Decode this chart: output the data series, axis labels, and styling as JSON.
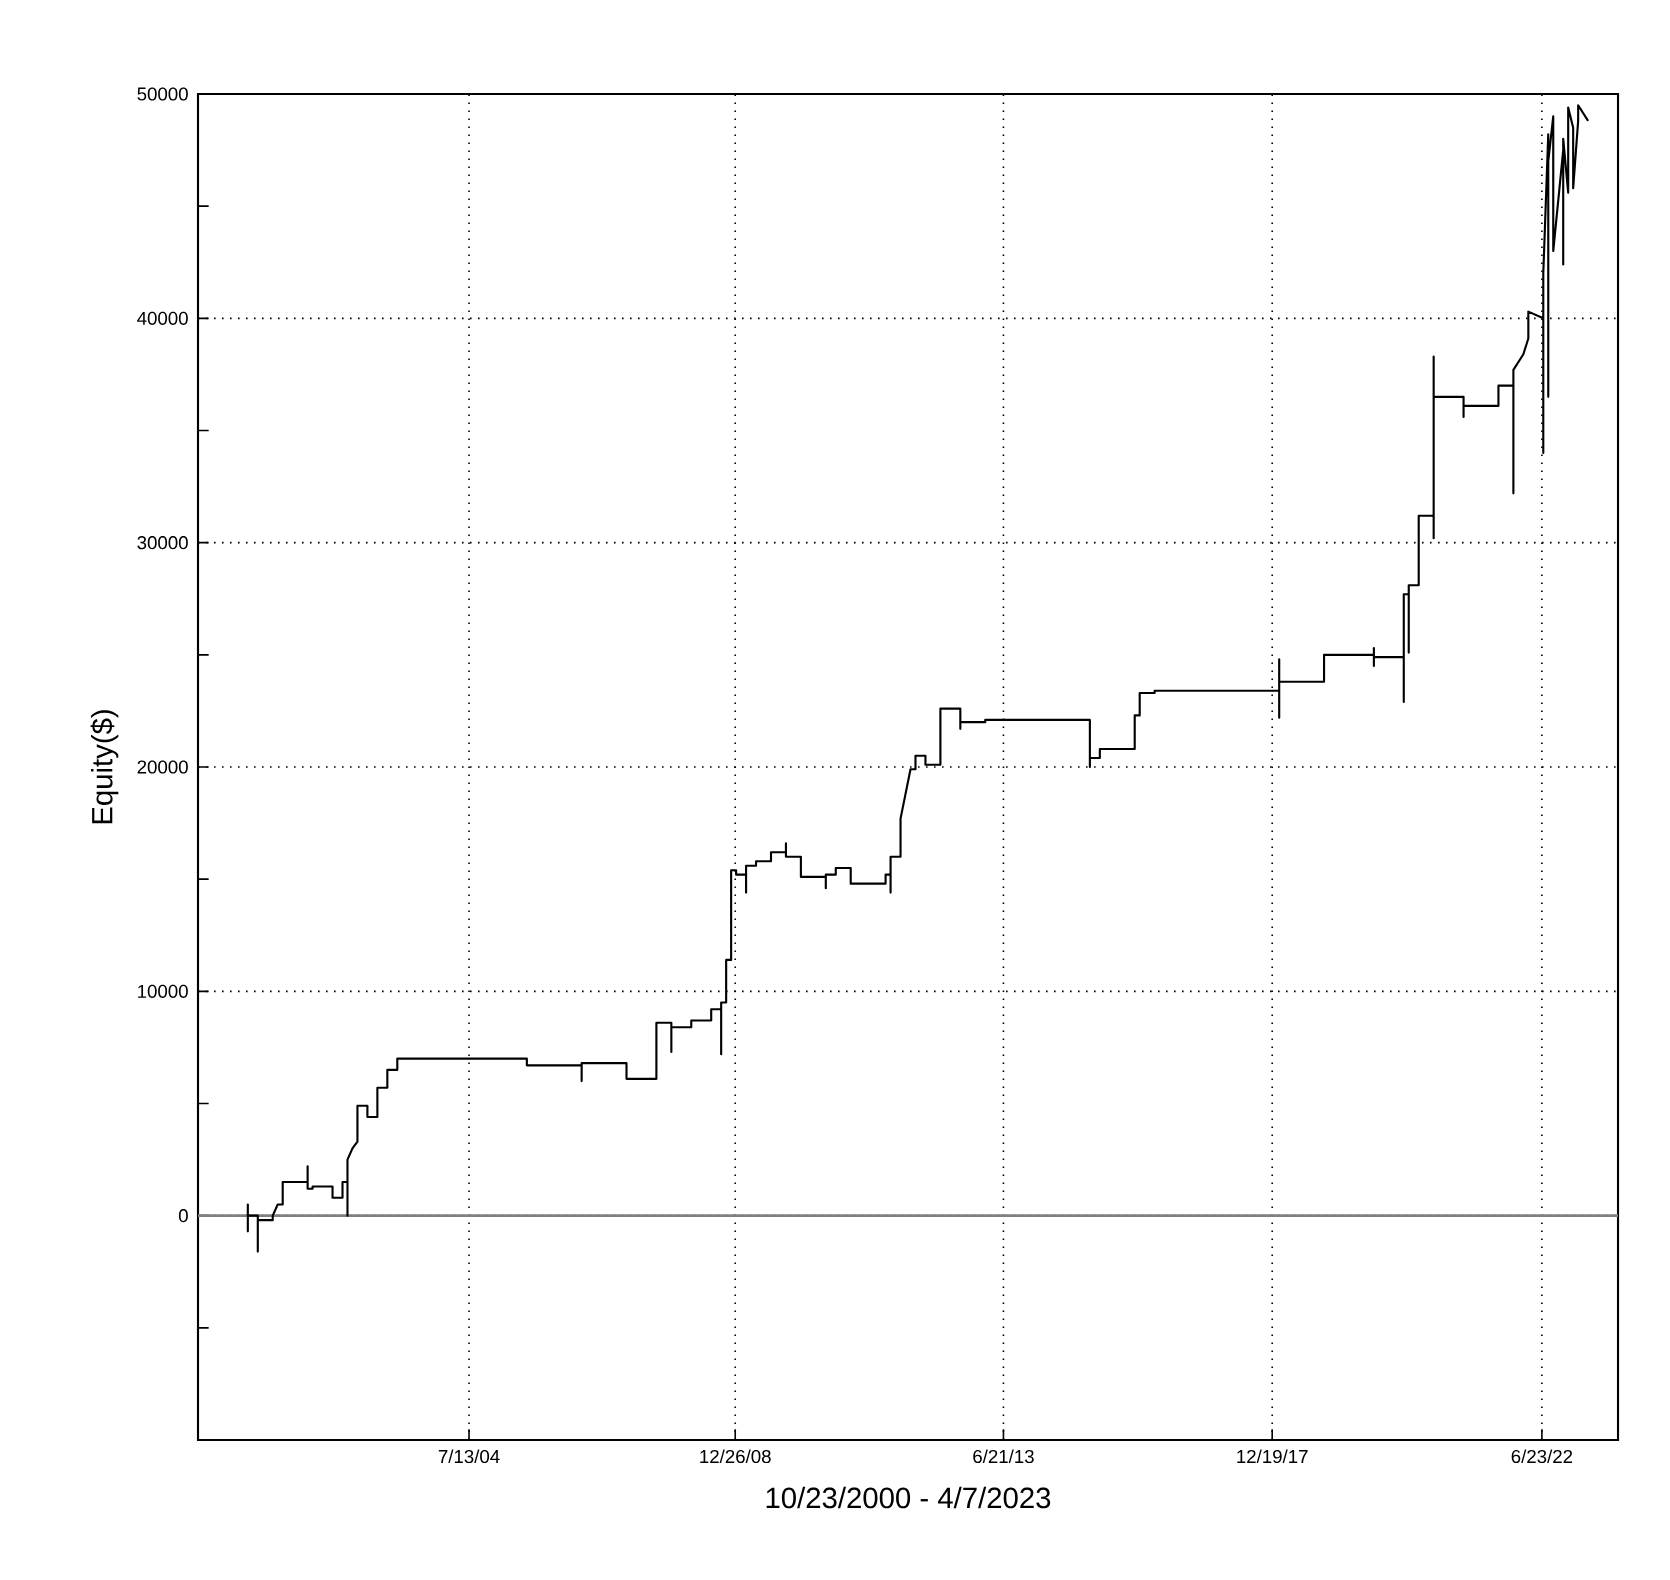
{
  "chart_data": {
    "type": "line",
    "xlabel": "10/23/2000 - 4/7/2023",
    "ylabel": "Equity($)",
    "xlim": [
      "2000-01-01",
      "2023-10-01"
    ],
    "ylim": [
      -10000,
      50000
    ],
    "xticks": [
      {
        "value": "2004-07-13",
        "label": "7/13/04"
      },
      {
        "value": "2008-12-26",
        "label": "12/26/08"
      },
      {
        "value": "2013-06-21",
        "label": "6/21/13"
      },
      {
        "value": "2017-12-19",
        "label": "12/19/17"
      },
      {
        "value": "2022-06-23",
        "label": "6/23/22"
      }
    ],
    "yticks": [
      {
        "value": -5000,
        "label": null
      },
      0,
      {
        "value": 5000,
        "label": null
      },
      10000,
      {
        "value": 15000,
        "label": null
      },
      20000,
      {
        "value": 25000,
        "label": null
      },
      30000,
      {
        "value": 35000,
        "label": null
      },
      40000,
      {
        "value": 45000,
        "label": null
      },
      50000
    ],
    "grid": true,
    "line_style": "solid",
    "ref_lines": [
      {
        "axis": "y",
        "value": 0,
        "color": "#808080"
      }
    ],
    "series": [
      {
        "color": "#000000",
        "x": [
          "2000-11",
          "2000-11",
          "2000-11",
          "2000-11",
          "2001-01",
          "2001-01",
          "2001-01",
          "2001-04",
          "2001-04",
          "2001-05",
          "2001-06",
          "2001-06",
          "2001-11",
          "2001-11",
          "2001-11",
          "2001-12",
          "2001-12",
          "2002-04",
          "2002-04",
          "2002-06",
          "2002-06",
          "2002-07",
          "2002-07",
          "2002-07",
          "2002-08",
          "2002-09",
          "2002-09",
          "2002-11",
          "2002-11",
          "2003-01",
          "2003-01",
          "2003-03",
          "2003-03",
          "2003-05",
          "2003-05",
          "2005-07",
          "2005-07",
          "2006-06",
          "2006-06",
          "2006-06",
          "2007-03",
          "2007-03",
          "2007-08",
          "2007-09",
          "2007-09",
          "2007-12",
          "2007-12",
          "2007-12",
          "2008-04",
          "2008-04",
          "2008-08",
          "2008-08",
          "2008-10",
          "2008-10",
          "2008-10",
          "2008-11",
          "2008-11",
          "2008-12",
          "2008-12",
          "2009-01",
          "2009-01",
          "2009-03",
          "2009-03",
          "2009-03",
          "2009-05",
          "2009-05",
          "2009-08",
          "2009-08",
          "2009-11",
          "2009-11",
          "2009-11",
          "2010-02",
          "2010-02",
          "2010-07",
          "2010-07",
          "2010-07",
          "2010-09",
          "2010-09",
          "2010-12",
          "2010-12",
          "2011-07",
          "2011-07",
          "2011-08",
          "2011-08",
          "2011-08",
          "2011-10",
          "2011-10",
          "2011-12",
          "2012-01",
          "2012-01",
          "2012-03",
          "2012-03",
          "2012-06",
          "2012-06",
          "2012-10",
          "2012-10",
          "2012-10",
          "2013-03",
          "2013-03",
          "2014-12",
          "2014-12",
          "2014-12",
          "2015-02",
          "2015-02",
          "2015-09",
          "2015-09",
          "2015-10",
          "2015-10",
          "2016-01",
          "2016-01",
          "2018-02",
          "2018-02",
          "2018-02",
          "2018-02",
          "2018-11",
          "2018-11",
          "2019-09",
          "2019-09",
          "2019-09",
          "2019-09",
          "2020-03",
          "2020-03",
          "2020-03",
          "2020-04",
          "2020-04",
          "2020-04",
          "2020-06",
          "2020-06",
          "2020-09",
          "2020-09",
          "2020-09",
          "2020-09",
          "2021-03",
          "2021-03",
          "2021-03",
          "2021-03",
          "2021-10",
          "2021-10",
          "2022-01",
          "2022-01",
          "2022-01",
          "2022-03",
          "2022-04",
          "2022-04",
          "2022-07",
          "2022-07",
          "2022-07",
          "2022-08",
          "2022-08",
          "2022-08",
          "2022-09",
          "2022-09",
          "2022-11",
          "2022-11",
          "2022-11",
          "2022-12",
          "2022-12",
          "2023-01",
          "2023-01",
          "2023-02",
          "2023-02",
          "2023-04"
        ],
        "values": [
          0,
          500,
          -700,
          0,
          0,
          -1600,
          -200,
          -200,
          0,
          500,
          500,
          1500,
          1500,
          2200,
          1200,
          1200,
          1300,
          1300,
          800,
          800,
          1500,
          1500,
          0,
          2500,
          3000,
          3300,
          4900,
          4900,
          4400,
          4400,
          5700,
          5700,
          6500,
          6500,
          7000,
          7000,
          6700,
          6700,
          6000,
          6800,
          6800,
          6100,
          6100,
          6100,
          8600,
          8600,
          7300,
          8400,
          8400,
          8700,
          8700,
          9200,
          9200,
          7200,
          9500,
          9500,
          11400,
          11400,
          15400,
          15400,
          15200,
          15200,
          14400,
          15600,
          15600,
          15800,
          15800,
          16200,
          16200,
          16600,
          16000,
          16000,
          15100,
          15100,
          14600,
          15200,
          15200,
          15500,
          15500,
          14800,
          14800,
          15200,
          15200,
          14400,
          16000,
          16000,
          17700,
          19900,
          19900,
          20500,
          20500,
          20100,
          20100,
          22600,
          22600,
          21700,
          22000,
          22000,
          22100,
          22100,
          20000,
          20400,
          20400,
          20800,
          20800,
          22300,
          22300,
          23300,
          23300,
          23400,
          23400,
          22200,
          24800,
          23800,
          23800,
          25000,
          25000,
          24500,
          25300,
          24900,
          24900,
          22900,
          27700,
          27700,
          25100,
          28100,
          28100,
          31200,
          31200,
          30200,
          38300,
          36500,
          36500,
          36100,
          35600,
          36100,
          36100,
          37000,
          37000,
          32200,
          37700,
          38400,
          39100,
          40300,
          40000,
          34000,
          42000,
          48200,
          36500,
          47000,
          49000,
          43000,
          47500,
          42400,
          48000,
          45600,
          49400,
          48500,
          45800,
          48800,
          49500,
          48800
        ]
      }
    ]
  }
}
